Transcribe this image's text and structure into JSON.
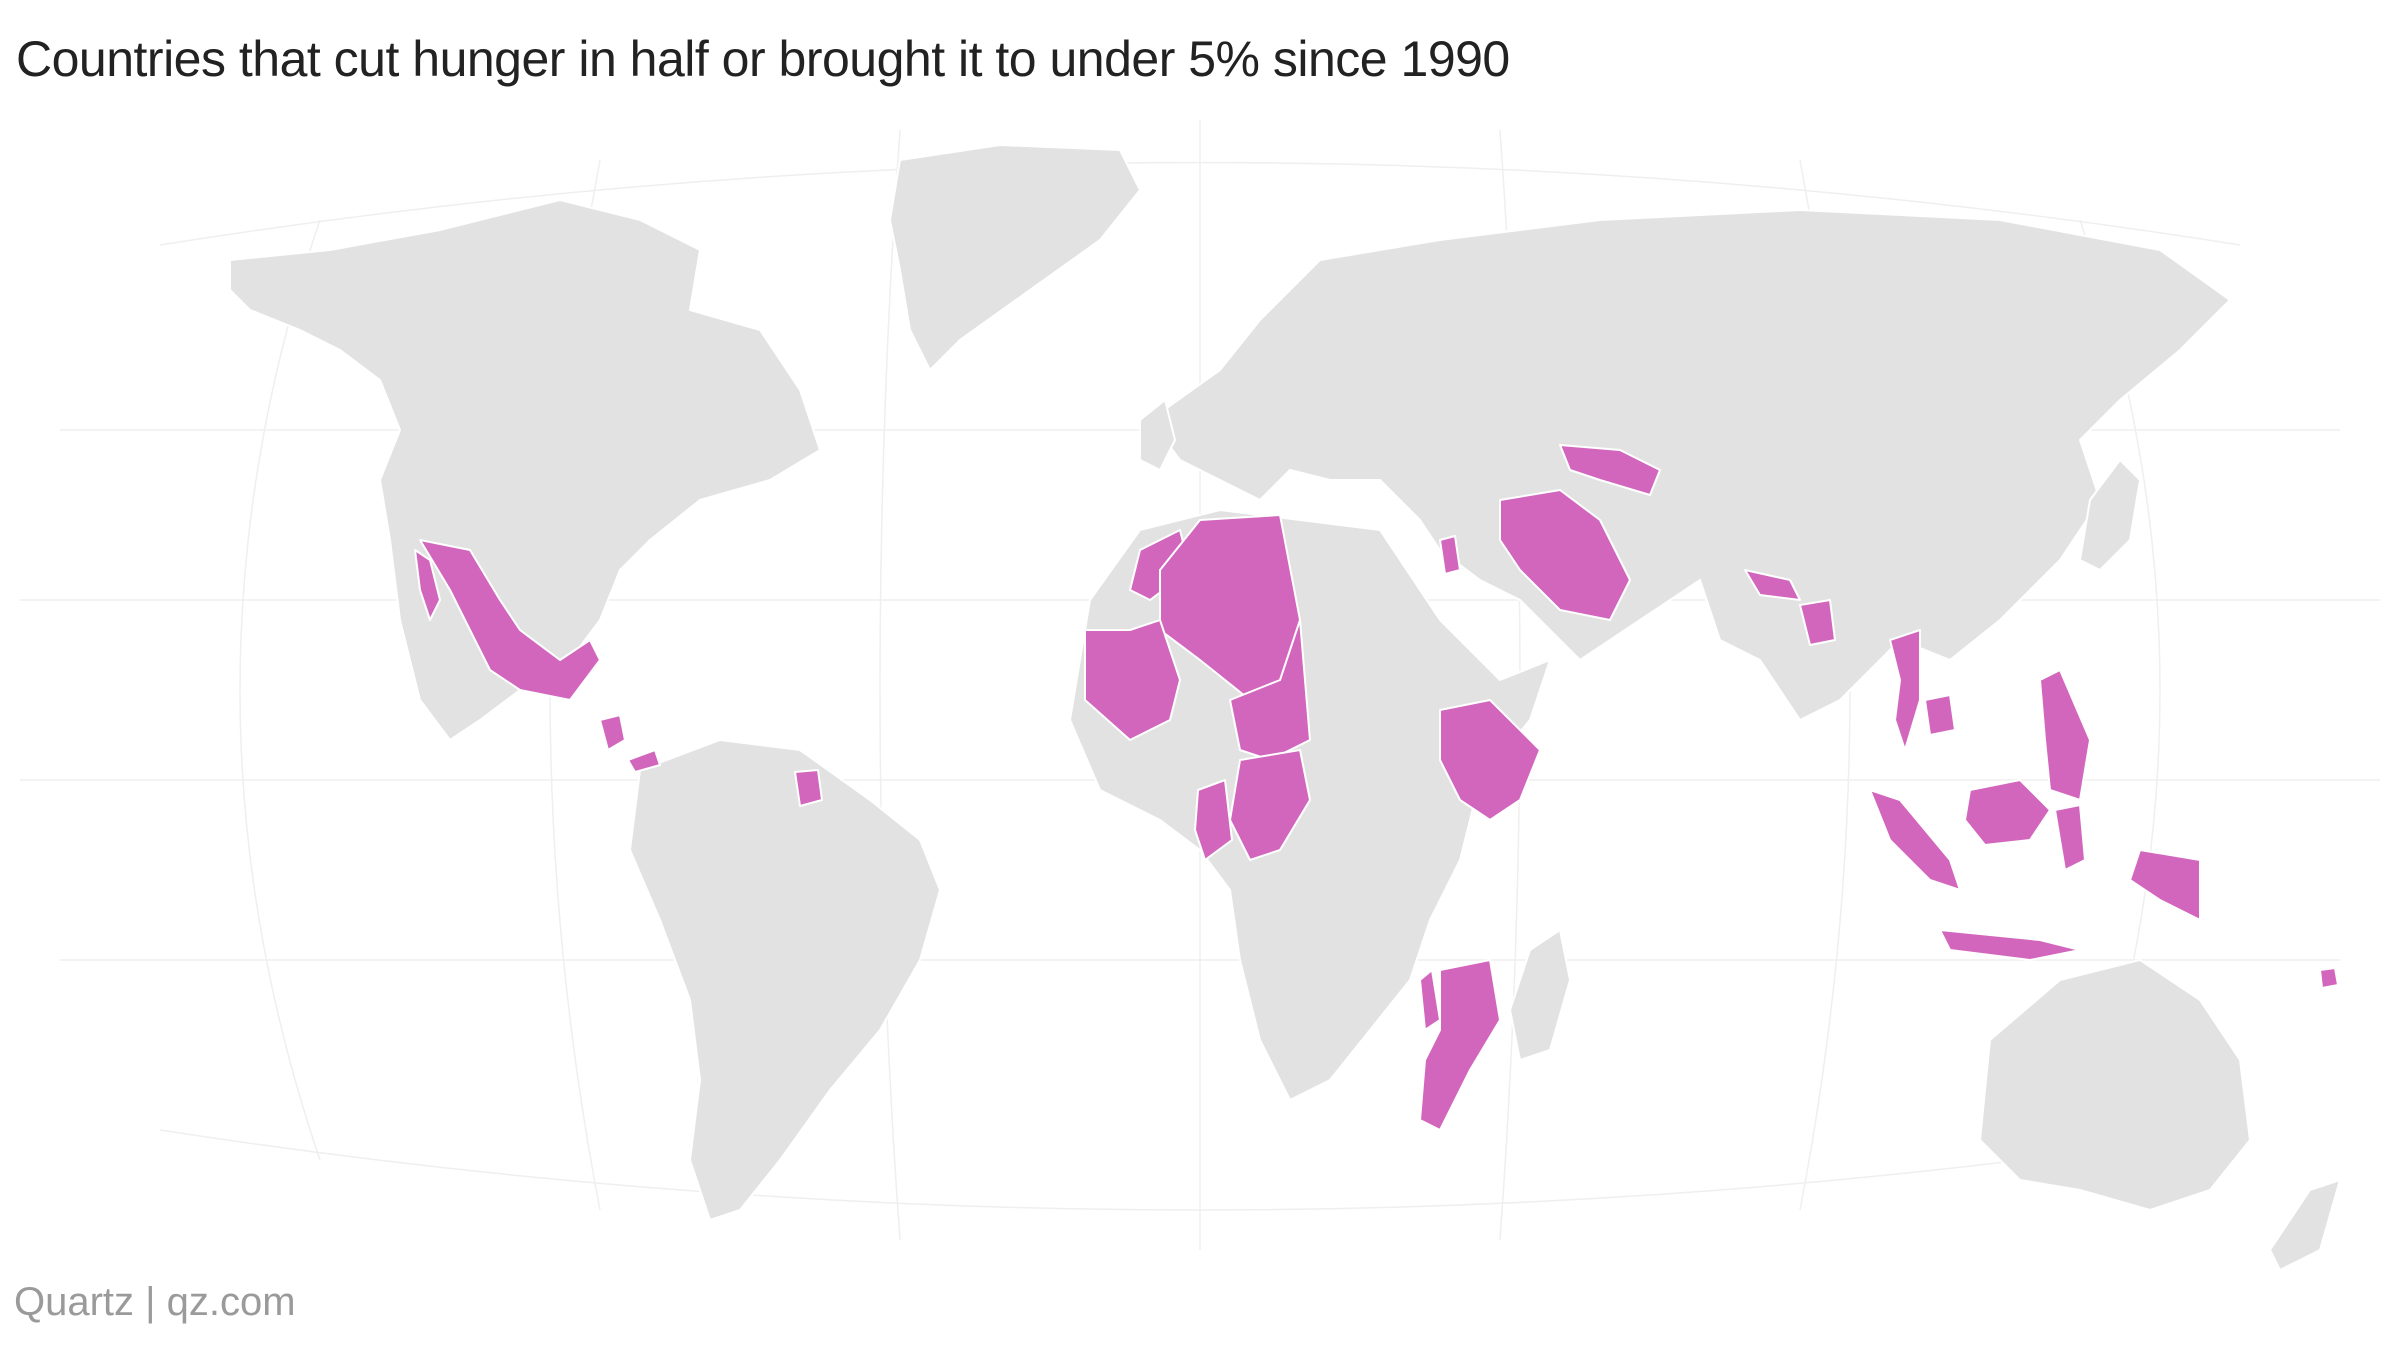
{
  "title": "Countries that cut hunger in half or brought it to under 5% since 1990",
  "credit": "Quartz | qz.com",
  "colors": {
    "land": "#e2e2e2",
    "highlight": "#d266bd",
    "border": "#ffffff",
    "graticule": "#efefef"
  },
  "map": {
    "projection": "robinson",
    "highlighted_countries": [
      "Mexico",
      "Nicaragua",
      "Panama",
      "Suriname",
      "Morocco",
      "Algeria",
      "Mauritania",
      "Niger",
      "Nigeria",
      "Ghana",
      "Togo",
      "Benin",
      "Ethiopia",
      "Malawi",
      "Mozambique",
      "Jordan",
      "Iran",
      "Uzbekistan",
      "Nepal",
      "Bangladesh",
      "Thailand",
      "Cambodia",
      "Philippines",
      "Malaysia",
      "Indonesia",
      "Papua New Guinea",
      "Fiji"
    ]
  }
}
